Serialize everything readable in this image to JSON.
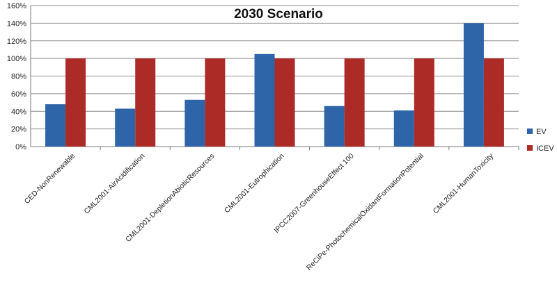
{
  "chart_data": {
    "type": "bar",
    "title": "2030 Scenario",
    "xlabel": "",
    "ylabel": "",
    "ylim": [
      0,
      160
    ],
    "ytick_step": 20,
    "y_tick_labels": [
      "0%",
      "20%",
      "40%",
      "60%",
      "80%",
      "100%",
      "120%",
      "140%",
      "160%"
    ],
    "grid": true,
    "legend_position": "right",
    "categories": [
      "CED-NonRenewable",
      "CML2001-AirAcidification",
      "CML2001-DepletionAbioticResources",
      "CML2001-Eutrophication",
      "IPCC2007-GreenhouseEffect 100",
      "ReCiPe-PhotochemicalOxidantFormationPotential",
      "CML2001-HumanToxicity"
    ],
    "series": [
      {
        "name": "EV",
        "color": "#2e64a8",
        "values": [
          48,
          43,
          53,
          105,
          46,
          41,
          140
        ]
      },
      {
        "name": "ICEV",
        "color": "#ad2b27",
        "values": [
          100,
          100,
          100,
          100,
          100,
          100,
          100
        ]
      }
    ]
  }
}
